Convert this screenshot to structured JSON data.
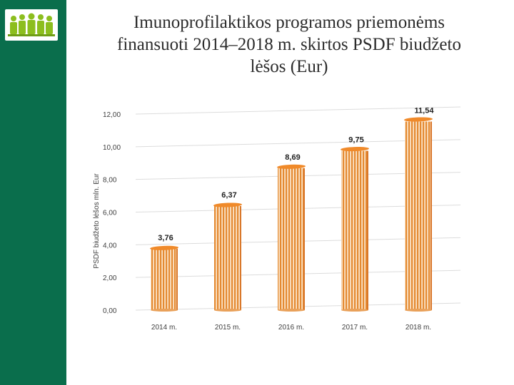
{
  "slide": {
    "title_lines": [
      "Imunoprofilaktikos programos priemonėms",
      "finansuoti 2014–2018 m. skirtos PSDF biudžeto",
      "lėšos (Eur)"
    ],
    "logo_icon": "people-group-logo-icon"
  },
  "colors": {
    "sidebar": "#0a6e4c",
    "bar": "#e9892d",
    "bar_top": "#f08a2a",
    "logo_green": "#8cbe1e"
  },
  "chart_data": {
    "type": "bar",
    "title": "",
    "categories": [
      "2014 m.",
      "2015 m.",
      "2016 m.",
      "2017 m.",
      "2018 m."
    ],
    "values": [
      3.76,
      6.37,
      8.69,
      9.75,
      11.54
    ],
    "value_labels": [
      "3,76",
      "6,37",
      "8,69",
      "9,75",
      "11,54"
    ],
    "ylabel": "PSDF biudžeto lėšos mln. Eur",
    "xlabel": "",
    "ylim": [
      0,
      12
    ],
    "yticks": [
      0,
      2,
      4,
      6,
      8,
      10,
      12
    ],
    "ytick_labels": [
      "0,00",
      "2,00",
      "4,00",
      "6,00",
      "8,00",
      "10,00",
      "12,00"
    ],
    "grid": true
  }
}
